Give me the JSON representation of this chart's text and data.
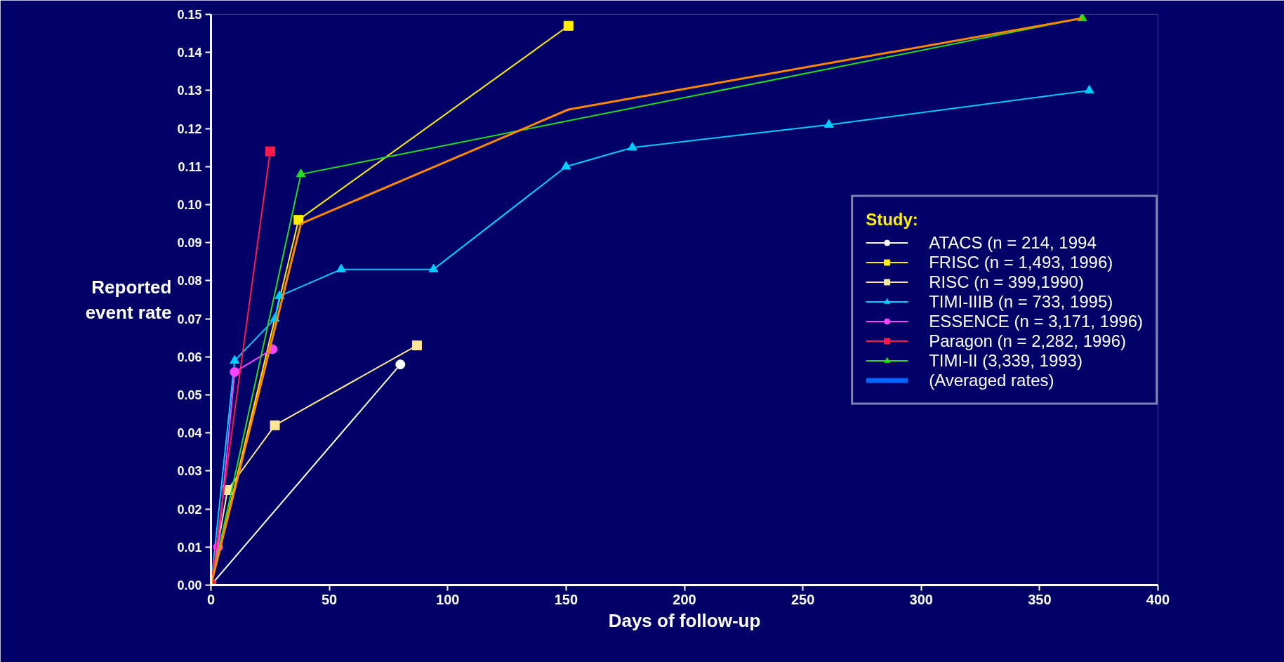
{
  "chart_data": {
    "type": "line",
    "xlabel": "Days of follow-up",
    "ylabel": "Reported event rate",
    "legend_title": "Study:",
    "xlim": [
      0,
      400
    ],
    "xticks": [
      0,
      50,
      100,
      150,
      200,
      250,
      300,
      350,
      400
    ],
    "ylim": [
      0,
      0.15
    ],
    "yticks": [
      {
        "value": 0,
        "label": "0.00"
      },
      {
        "value": 0.01,
        "label": "0.01"
      },
      {
        "value": 0.02,
        "label": "0.02"
      },
      {
        "value": 0.03,
        "label": "0.03"
      },
      {
        "value": 0.04,
        "label": "0.04"
      },
      {
        "value": 0.05,
        "label": "0.05"
      },
      {
        "value": 0.06,
        "label": "0.06"
      },
      {
        "value": 0.07,
        "label": "0.07"
      },
      {
        "value": 0.08,
        "label": "0.08"
      },
      {
        "value": 0.09,
        "label": "0.09"
      },
      {
        "value": 0.1,
        "label": "0.10"
      },
      {
        "value": 0.11,
        "label": "0.11"
      },
      {
        "value": 0.12,
        "label": "0.12"
      },
      {
        "value": 0.13,
        "label": "0.13"
      },
      {
        "value": 0.14,
        "label": "0.14"
      },
      {
        "value": 0.15,
        "label": "0.15"
      }
    ],
    "grid": false,
    "legend": "right",
    "line_style": "solid",
    "series": [
      {
        "name": "ATACS (n = 214, 1994",
        "color": "#ffffff",
        "marker": "circle",
        "x": [
          0,
          80
        ],
        "values": [
          0,
          0.058
        ]
      },
      {
        "name": "FRISC (n = 1,493, 1996)",
        "color": "#ffee00",
        "marker": "square",
        "x": [
          0,
          37,
          151
        ],
        "values": [
          0,
          0.096,
          0.147
        ]
      },
      {
        "name": "RISC (n = 399,1990)",
        "color": "#ffe699",
        "marker": "square",
        "x": [
          0,
          7,
          27,
          87
        ],
        "values": [
          0,
          0.025,
          0.042,
          0.063
        ]
      },
      {
        "name": "TIMI-IIIB (n = 733, 1995)",
        "color": "#00ccff",
        "marker": "triangle",
        "x": [
          0,
          10,
          27,
          29,
          55,
          94,
          150,
          178,
          261,
          371
        ],
        "values": [
          0,
          0.059,
          0.07,
          0.076,
          0.083,
          0.083,
          0.11,
          0.115,
          0.121,
          0.13
        ]
      },
      {
        "name": "ESSENCE (n = 3,171, 1996)",
        "color": "#ff44ff",
        "marker": "circle",
        "x": [
          0,
          3,
          10,
          26
        ],
        "values": [
          0,
          0.01,
          0.056,
          0.062
        ]
      },
      {
        "name": "Paragon (n = 2,282, 1996)",
        "color": "#ff1a4d",
        "marker": "square",
        "x": [
          0,
          25
        ],
        "values": [
          0,
          0.114
        ]
      },
      {
        "name": "TIMI-II (3,339, 1993)",
        "color": "#22dd22",
        "marker": "triangle",
        "x": [
          0,
          38,
          368
        ],
        "values": [
          0,
          0.108,
          0.149
        ]
      },
      {
        "color": "#ff8800",
        "marker": "none",
        "x": [
          0,
          38,
          151,
          368
        ],
        "values": [
          0,
          0.095,
          0.125,
          0.149
        ]
      },
      {
        "name": "(Averaged rates)",
        "color": "#0066ff",
        "marker": "none"
      }
    ]
  }
}
